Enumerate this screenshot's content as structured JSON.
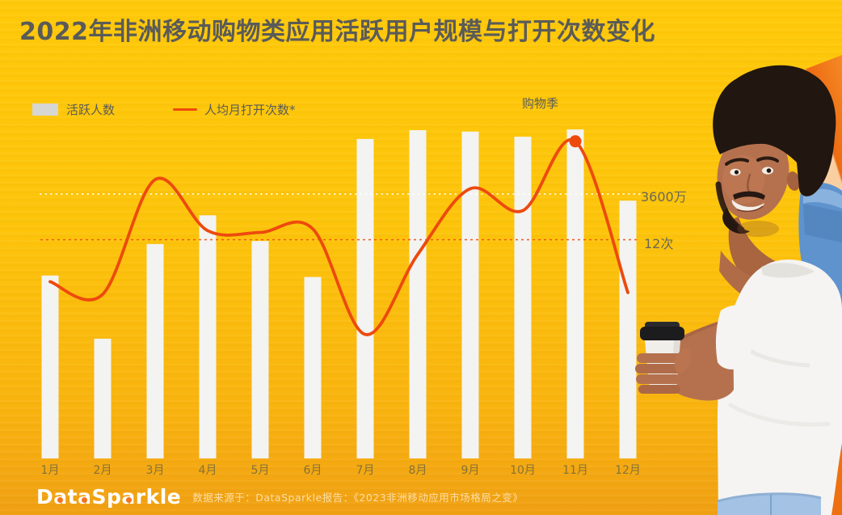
{
  "title": "2022年非洲移动购物类应用活跃用户规模与打开次数变化",
  "legend": {
    "bars_label": "活跃人数",
    "line_label": "人均月打开次数*"
  },
  "annotations": {
    "shopping_season": "购物季",
    "bar_ref_label": "3600万",
    "line_ref_label": "12次"
  },
  "footer": {
    "logo_text": "DataSparkle",
    "source_text": "数据来源于：DataSparkle报告：《2023非洲移动应用市场格局之变》"
  },
  "colors": {
    "background_top": "#FFC90A",
    "background_bottom": "#F0A013",
    "accent_line": "#ED4A0E",
    "bar_fill": "#F3F3F1",
    "title_text": "#5A5B58",
    "legend_swatch_gray": "#D6D6D3"
  },
  "chart_data": {
    "type": "bar",
    "title": "2022年非洲移动购物类应用活跃用户规模与打开次数变化",
    "categories": [
      "1月",
      "2月",
      "3月",
      "4月",
      "5月",
      "6月",
      "7月",
      "8月",
      "9月",
      "10月",
      "11月",
      "12月"
    ],
    "series": [
      {
        "name": "活跃人数",
        "type": "bar",
        "unit": "万",
        "values": [
          2490,
          1630,
          2920,
          3310,
          2960,
          2470,
          4350,
          4470,
          4450,
          4380,
          4480,
          3510
        ]
      },
      {
        "name": "人均月打开次数*",
        "type": "line",
        "unit": "次",
        "values": [
          9.7,
          9.0,
          15.3,
          12.5,
          12.4,
          12.6,
          6.8,
          11.2,
          14.8,
          13.6,
          17.4,
          9.1
        ]
      }
    ],
    "values_estimated": true,
    "reference_lines": [
      {
        "label": "3600万",
        "series": "活跃人数",
        "value": 3600,
        "style": "white-dotted"
      },
      {
        "label": "12次",
        "series": "人均月打开次数*",
        "value": 12,
        "style": "red-dashed"
      }
    ],
    "annotations": [
      {
        "text": "购物季",
        "category": "11月",
        "marker": "dot-on-line-peak"
      }
    ],
    "legend_position": "top-left",
    "grid": false,
    "xlabel": "",
    "ylabel": ""
  }
}
